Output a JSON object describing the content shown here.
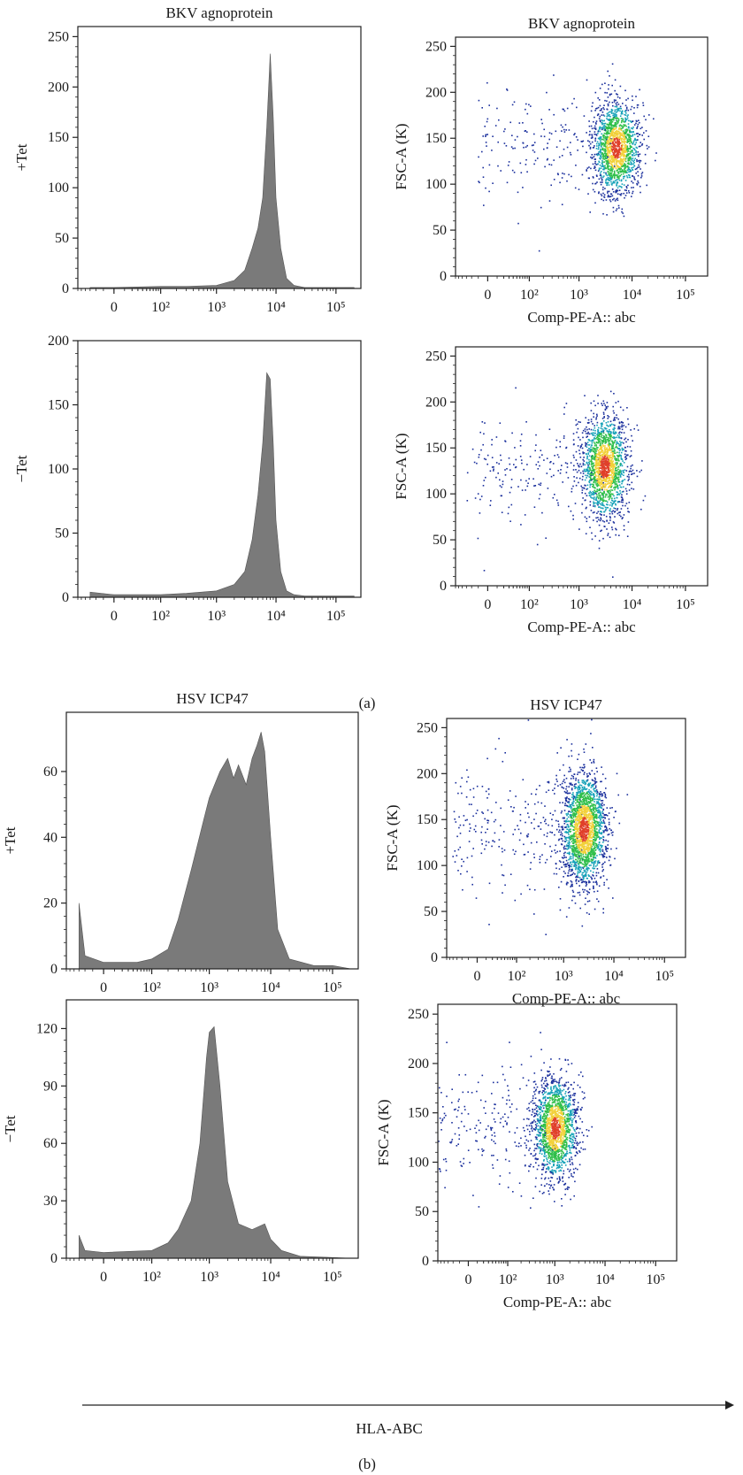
{
  "figure": {
    "section_a_label": "(a)",
    "section_b_label": "(b)",
    "overall_xlabel": "HLA-ABC"
  },
  "colors": {
    "histogram_fill": "#7a7a7a",
    "density_low": "#1a2f9c",
    "density_mid_low": "#17a2b8",
    "density_mid": "#2fbf4a",
    "density_high": "#f2d13a",
    "density_peak": "#e0402a",
    "axis": "#222222"
  },
  "chart_data": [
    {
      "id": "a-tet-plus-hist",
      "type": "area",
      "title": "BKV agnoprotein",
      "ylabel": "+Tet",
      "xlabel": "",
      "x_scale": "biexponential",
      "x_ticks": [
        "0",
        "10²",
        "10³",
        "10⁴",
        "10⁵"
      ],
      "ylim": [
        0,
        260
      ],
      "y_ticks": [
        0,
        50,
        100,
        150,
        200,
        250
      ],
      "x": [
        "-30",
        "0",
        "100",
        "300",
        "1000",
        "2000",
        "3000",
        "4000",
        "5000",
        "6000",
        "7000",
        "8000",
        "9000",
        "10000",
        "12000",
        "15000",
        "20000",
        "30000",
        "100000",
        "200000"
      ],
      "values": [
        1,
        1,
        2,
        2,
        3,
        8,
        18,
        40,
        60,
        90,
        160,
        233,
        170,
        90,
        40,
        10,
        3,
        1,
        1,
        1
      ]
    },
    {
      "id": "a-tet-plus-dot",
      "type": "scatter",
      "title": "BKV agnoprotein",
      "ylabel": "FSC-A (K)",
      "xlabel": "Comp-PE-A:: abc",
      "x_scale": "biexponential",
      "x_ticks": [
        "0",
        "10²",
        "10³",
        "10⁴",
        "10⁵"
      ],
      "ylim": [
        0,
        260
      ],
      "y_ticks": [
        0,
        50,
        100,
        150,
        200,
        250
      ],
      "cluster": {
        "x_center": 5000,
        "y_center": 140,
        "y_spread": 25
      },
      "n_points": 1800
    },
    {
      "id": "a-tet-minus-hist",
      "type": "area",
      "title": "",
      "ylabel": "−Tet",
      "xlabel": "",
      "x_scale": "biexponential",
      "x_ticks": [
        "0",
        "10²",
        "10³",
        "10⁴",
        "10⁵"
      ],
      "ylim": [
        0,
        200
      ],
      "y_ticks": [
        0,
        50,
        100,
        150,
        200
      ],
      "x": [
        "-30",
        "0",
        "100",
        "300",
        "1000",
        "2000",
        "3000",
        "4000",
        "5000",
        "6000",
        "7000",
        "8000",
        "9000",
        "10000",
        "12000",
        "15000",
        "20000",
        "30000",
        "100000",
        "200000"
      ],
      "values": [
        4,
        2,
        2,
        3,
        5,
        10,
        20,
        45,
        80,
        120,
        175,
        170,
        120,
        60,
        20,
        5,
        2,
        1,
        1,
        1
      ]
    },
    {
      "id": "a-tet-minus-dot",
      "type": "scatter",
      "title": "",
      "ylabel": "FSC-A (K)",
      "xlabel": "Comp-PE-A:: abc",
      "x_scale": "biexponential",
      "x_ticks": [
        "0",
        "10²",
        "10³",
        "10⁴",
        "10⁵"
      ],
      "ylim": [
        0,
        260
      ],
      "y_ticks": [
        0,
        50,
        100,
        150,
        200,
        250
      ],
      "cluster": {
        "x_center": 3000,
        "y_center": 130,
        "y_spread": 28
      },
      "n_points": 1900
    },
    {
      "id": "b-tet-plus-hist",
      "type": "area",
      "title": "HSV ICP47",
      "ylabel": "+Tet",
      "xlabel": "",
      "x_scale": "biexponential",
      "x_ticks": [
        "0",
        "10²",
        "10³",
        "10⁴",
        "10⁵"
      ],
      "ylim": [
        0,
        78
      ],
      "y_ticks": [
        0,
        20,
        40,
        60
      ],
      "x": [
        "-30",
        "-20",
        "0",
        "50",
        "100",
        "200",
        "300",
        "500",
        "800",
        "1000",
        "1500",
        "2000",
        "2500",
        "3000",
        "4000",
        "5000",
        "6000",
        "7000",
        "8000",
        "10000",
        "13000",
        "20000",
        "50000",
        "100000",
        "200000"
      ],
      "values": [
        20,
        4,
        2,
        2,
        3,
        6,
        15,
        30,
        45,
        52,
        60,
        64,
        58,
        62,
        56,
        64,
        68,
        72,
        66,
        40,
        12,
        3,
        1,
        1,
        0
      ]
    },
    {
      "id": "b-tet-plus-dot",
      "type": "scatter",
      "title": "HSV ICP47",
      "ylabel": "FSC-A (K)",
      "xlabel": "Comp-PE-A:: abc",
      "x_scale": "biexponential",
      "x_ticks": [
        "0",
        "10²",
        "10³",
        "10⁴",
        "10⁵"
      ],
      "ylim": [
        0,
        260
      ],
      "y_ticks": [
        0,
        50,
        100,
        150,
        200,
        250
      ],
      "cluster": {
        "x_center": 2500,
        "y_center": 140,
        "y_spread": 30
      },
      "n_points": 2400
    },
    {
      "id": "b-tet-minus-hist",
      "type": "area",
      "title": "",
      "ylabel": "−Tet",
      "xlabel": "",
      "x_scale": "biexponential",
      "x_ticks": [
        "0",
        "10²",
        "10³",
        "10⁴",
        "10⁵"
      ],
      "ylim": [
        0,
        135
      ],
      "y_ticks": [
        0,
        30,
        60,
        90,
        120
      ],
      "x": [
        "-30",
        "-20",
        "0",
        "100",
        "200",
        "300",
        "500",
        "700",
        "900",
        "1000",
        "1200",
        "1500",
        "2000",
        "3000",
        "5000",
        "8000",
        "10000",
        "15000",
        "30000",
        "200000"
      ],
      "values": [
        12,
        4,
        3,
        4,
        8,
        15,
        30,
        60,
        105,
        118,
        121,
        90,
        40,
        18,
        15,
        18,
        10,
        4,
        1,
        0
      ]
    },
    {
      "id": "b-tet-minus-dot",
      "type": "scatter",
      "title": "",
      "ylabel": "FSC-A (K)",
      "xlabel": "Comp-PE-A:: abc",
      "x_scale": "biexponential",
      "x_ticks": [
        "0",
        "10²",
        "10³",
        "10⁴",
        "10⁵"
      ],
      "ylim": [
        0,
        260
      ],
      "y_ticks": [
        0,
        50,
        100,
        150,
        200,
        250
      ],
      "cluster": {
        "x_center": 1000,
        "y_center": 135,
        "y_spread": 25
      },
      "n_points": 2000
    }
  ]
}
